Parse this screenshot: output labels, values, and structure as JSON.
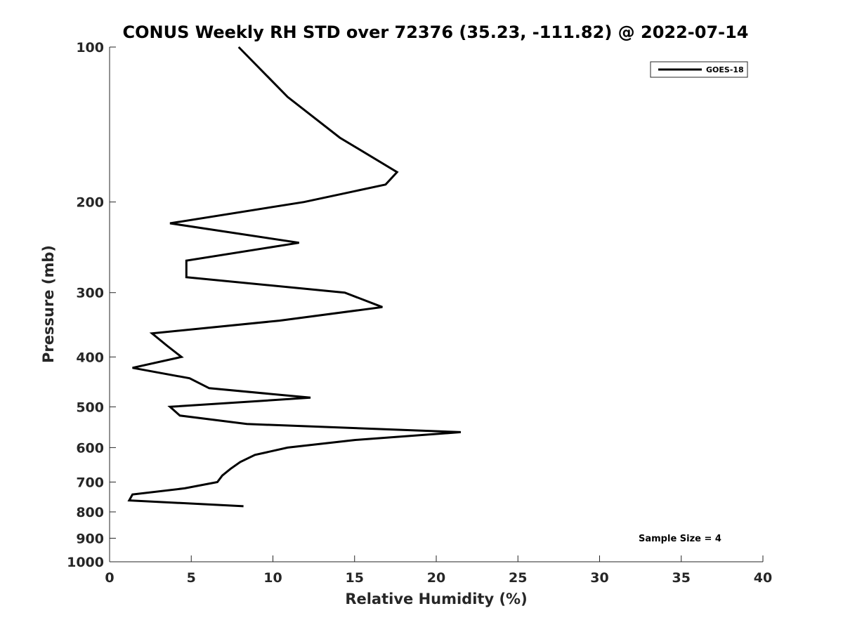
{
  "chart_data": {
    "type": "line",
    "title": "CONUS Weekly RH STD over 72376 (35.23, -111.82) @ 2022-07-14",
    "xlabel": "Relative Humidity (%)",
    "ylabel": "Pressure (mb)",
    "xlim": [
      0,
      40
    ],
    "ylim": [
      100,
      1000
    ],
    "y_scale": "log",
    "y_reversed": true,
    "x_ticks": [
      "0",
      "5",
      "10",
      "15",
      "20",
      "25",
      "30",
      "35",
      "40"
    ],
    "y_ticks": [
      "100",
      "200",
      "300",
      "400",
      "500",
      "600",
      "700",
      "800",
      "900",
      "1000"
    ],
    "legend_position": "top-right",
    "series": [
      {
        "name": "GOES-18",
        "color": "#000000",
        "points": [
          {
            "x": 7.9,
            "y": 100
          },
          {
            "x": 10.9,
            "y": 125
          },
          {
            "x": 14.1,
            "y": 150
          },
          {
            "x": 17.6,
            "y": 175
          },
          {
            "x": 16.9,
            "y": 185
          },
          {
            "x": 11.9,
            "y": 200
          },
          {
            "x": 3.7,
            "y": 220
          },
          {
            "x": 11.6,
            "y": 240
          },
          {
            "x": 4.7,
            "y": 260
          },
          {
            "x": 4.7,
            "y": 280
          },
          {
            "x": 14.4,
            "y": 300
          },
          {
            "x": 16.7,
            "y": 320
          },
          {
            "x": 10.4,
            "y": 340
          },
          {
            "x": 2.6,
            "y": 360
          },
          {
            "x": 3.5,
            "y": 380
          },
          {
            "x": 4.4,
            "y": 400
          },
          {
            "x": 1.4,
            "y": 420
          },
          {
            "x": 4.9,
            "y": 440
          },
          {
            "x": 6.1,
            "y": 460
          },
          {
            "x": 12.3,
            "y": 480
          },
          {
            "x": 3.7,
            "y": 500
          },
          {
            "x": 4.3,
            "y": 520
          },
          {
            "x": 8.4,
            "y": 540
          },
          {
            "x": 21.5,
            "y": 560
          },
          {
            "x": 15.0,
            "y": 580
          },
          {
            "x": 10.9,
            "y": 600
          },
          {
            "x": 8.9,
            "y": 620
          },
          {
            "x": 8.0,
            "y": 640
          },
          {
            "x": 7.4,
            "y": 660
          },
          {
            "x": 6.9,
            "y": 680
          },
          {
            "x": 6.6,
            "y": 700
          },
          {
            "x": 4.6,
            "y": 720
          },
          {
            "x": 1.4,
            "y": 740
          },
          {
            "x": 1.2,
            "y": 760
          },
          {
            "x": 8.2,
            "y": 780
          }
        ]
      }
    ],
    "annotation": "Sample Size = 4"
  }
}
